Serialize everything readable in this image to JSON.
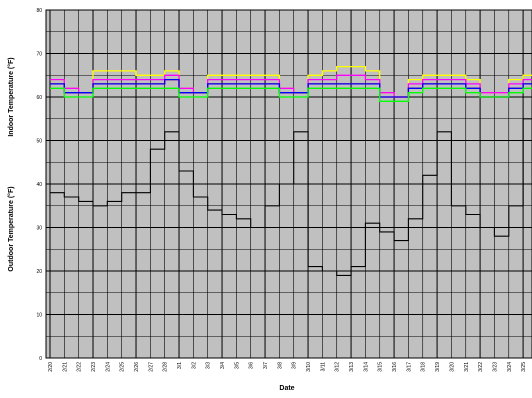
{
  "chart_data": {
    "type": "line",
    "xlabel": "Date",
    "ylabel_upper": "Indoor Temperature (°F)",
    "ylabel_lower": "Outdoor Temperature (°F)",
    "ylim": [
      0,
      80
    ],
    "yticks": [
      0,
      10,
      20,
      30,
      40,
      50,
      60,
      70,
      80
    ],
    "grid": true,
    "background": "#c0c0c0",
    "categories": [
      "2/20",
      "2/21",
      "2/22",
      "2/23",
      "2/24",
      "2/25",
      "2/26",
      "2/27",
      "2/28",
      "3/1",
      "3/2",
      "3/3",
      "3/4",
      "3/5",
      "3/6",
      "3/7",
      "3/8",
      "3/9",
      "3/10",
      "3/11",
      "3/12",
      "3/13",
      "3/14",
      "3/15",
      "3/16",
      "3/17",
      "3/18",
      "3/19",
      "3/20",
      "3/21",
      "3/22",
      "3/23",
      "3/24",
      "3/25"
    ],
    "series": [
      {
        "color": "#ffff00",
        "values": [
          64,
          62,
          61,
          66,
          66,
          66,
          65,
          65,
          66,
          62,
          61,
          65,
          65,
          65,
          65,
          65,
          62,
          61,
          65,
          66,
          67,
          67,
          66,
          61,
          60,
          64,
          65,
          65,
          65,
          64,
          61,
          61,
          64,
          65
        ]
      },
      {
        "color": "#ff00ff",
        "values": [
          64,
          62,
          61,
          64,
          64,
          64,
          64,
          64,
          65,
          62,
          61,
          64,
          64,
          64,
          64,
          64,
          62,
          61,
          64,
          64,
          65,
          65,
          64,
          61,
          60,
          63,
          64,
          64,
          64,
          63,
          61,
          61,
          63,
          64
        ]
      },
      {
        "color": "#ff0000",
        "values": [
          63,
          61,
          61,
          63,
          63,
          63,
          63,
          63,
          64,
          61,
          61,
          63,
          63,
          63,
          63,
          63,
          61,
          61,
          63,
          63,
          63,
          63,
          63,
          60,
          60,
          62,
          63,
          63,
          63,
          62,
          60,
          60,
          62,
          63
        ]
      },
      {
        "color": "#0000ff",
        "values": [
          63,
          61,
          61,
          63,
          63,
          63,
          63,
          63,
          64,
          61,
          61,
          63,
          63,
          63,
          63,
          63,
          61,
          61,
          63,
          63,
          63,
          63,
          63,
          60,
          60,
          62,
          63,
          63,
          63,
          62,
          60,
          60,
          62,
          63
        ]
      },
      {
        "color": "#00ff00",
        "values": [
          62,
          60,
          60,
          62,
          62,
          62,
          62,
          62,
          62,
          60,
          60,
          62,
          62,
          62,
          62,
          62,
          60,
          60,
          62,
          62,
          62,
          62,
          62,
          59,
          59,
          61,
          62,
          62,
          62,
          61,
          60,
          60,
          61,
          62
        ]
      },
      {
        "color": "#000000",
        "values": [
          38,
          37,
          36,
          35,
          36,
          38,
          38,
          48,
          52,
          43,
          37,
          34,
          33,
          32,
          30,
          35,
          40,
          52,
          21,
          20,
          19,
          21,
          31,
          29,
          27,
          32,
          42,
          52,
          35,
          33,
          30,
          28,
          35,
          55
        ]
      }
    ]
  }
}
